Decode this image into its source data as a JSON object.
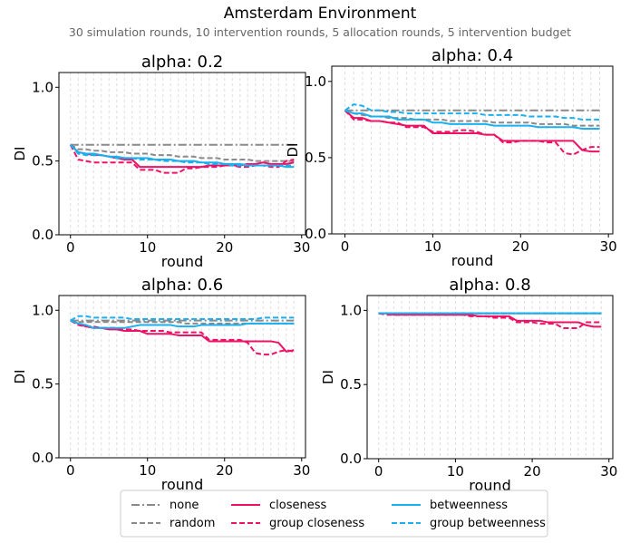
{
  "figure": {
    "title": "Amsterdam Environment",
    "subtitle": "30 simulation rounds, 10 intervention rounds, 5 allocation rounds, 5 intervention budget"
  },
  "legend": {
    "placement": "bottom-center",
    "entries": [
      {
        "name": "none",
        "color": "#8a8a8a",
        "dash": "dashdot"
      },
      {
        "name": "random",
        "color": "#8a8a8a",
        "dash": "dashed"
      },
      {
        "name": "closeness",
        "color": "#ee1166",
        "dash": "solid"
      },
      {
        "name": "group closeness",
        "color": "#ee1166",
        "dash": "dashed"
      },
      {
        "name": "betweenness",
        "color": "#1ab0f0",
        "dash": "solid"
      },
      {
        "name": "group betweenness",
        "color": "#1ab0f0",
        "dash": "dashed"
      }
    ]
  },
  "chart_data": [
    {
      "type": "line",
      "title": "alpha: 0.2",
      "xlabel": "round",
      "ylabel": "DI",
      "xlim": [
        -1.5,
        30.5
      ],
      "ylim": [
        0.0,
        1.1
      ],
      "xticks": [
        0,
        10,
        20,
        30
      ],
      "yticks": [
        0.0,
        0.5,
        1.0
      ],
      "ytick_labels": [
        "0.0",
        "0.5",
        "1.0"
      ],
      "grid": "vertical dashed",
      "x": [
        0,
        1,
        2,
        3,
        4,
        5,
        6,
        7,
        8,
        9,
        10,
        11,
        12,
        13,
        14,
        15,
        16,
        17,
        18,
        19,
        20,
        21,
        22,
        23,
        24,
        25,
        26,
        27,
        28,
        29
      ],
      "series": [
        {
          "name": "none",
          "values": [
            0.61,
            0.61,
            0.61,
            0.61,
            0.61,
            0.61,
            0.61,
            0.61,
            0.61,
            0.61,
            0.61,
            0.61,
            0.61,
            0.61,
            0.61,
            0.61,
            0.61,
            0.61,
            0.61,
            0.61,
            0.61,
            0.61,
            0.61,
            0.61,
            0.61,
            0.61,
            0.61,
            0.61,
            0.61,
            0.61
          ]
        },
        {
          "name": "random",
          "values": [
            0.61,
            0.58,
            0.58,
            0.57,
            0.57,
            0.56,
            0.56,
            0.56,
            0.55,
            0.55,
            0.55,
            0.54,
            0.54,
            0.54,
            0.53,
            0.53,
            0.53,
            0.52,
            0.52,
            0.52,
            0.51,
            0.51,
            0.51,
            0.51,
            0.5,
            0.5,
            0.5,
            0.5,
            0.5,
            0.5
          ]
        },
        {
          "name": "closeness",
          "values": [
            0.61,
            0.56,
            0.55,
            0.54,
            0.54,
            0.53,
            0.52,
            0.51,
            0.51,
            0.46,
            0.46,
            0.46,
            0.46,
            0.46,
            0.46,
            0.46,
            0.46,
            0.46,
            0.47,
            0.47,
            0.47,
            0.47,
            0.47,
            0.48,
            0.48,
            0.49,
            0.48,
            0.48,
            0.48,
            0.49
          ]
        },
        {
          "name": "group closeness",
          "values": [
            0.61,
            0.51,
            0.5,
            0.49,
            0.49,
            0.49,
            0.49,
            0.49,
            0.49,
            0.44,
            0.44,
            0.44,
            0.42,
            0.42,
            0.42,
            0.45,
            0.45,
            0.46,
            0.46,
            0.46,
            0.47,
            0.47,
            0.46,
            0.46,
            0.47,
            0.47,
            0.46,
            0.46,
            0.5,
            0.51
          ]
        },
        {
          "name": "betweenness",
          "values": [
            0.61,
            0.56,
            0.55,
            0.55,
            0.54,
            0.53,
            0.53,
            0.52,
            0.52,
            0.52,
            0.52,
            0.51,
            0.51,
            0.51,
            0.5,
            0.5,
            0.5,
            0.49,
            0.49,
            0.49,
            0.48,
            0.48,
            0.48,
            0.47,
            0.47,
            0.47,
            0.47,
            0.47,
            0.46,
            0.46
          ]
        },
        {
          "name": "group betweenness",
          "values": [
            0.61,
            0.55,
            0.54,
            0.54,
            0.54,
            0.53,
            0.52,
            0.52,
            0.52,
            0.51,
            0.51,
            0.51,
            0.5,
            0.5,
            0.5,
            0.49,
            0.49,
            0.49,
            0.48,
            0.48,
            0.48,
            0.47,
            0.47,
            0.47,
            0.47,
            0.47,
            0.47,
            0.47,
            0.47,
            0.47
          ]
        }
      ]
    },
    {
      "type": "line",
      "title": "alpha: 0.4",
      "xlabel": "round",
      "ylabel": "DI",
      "xlim": [
        -1.5,
        30.5
      ],
      "ylim": [
        0.0,
        1.1
      ],
      "xticks": [
        0,
        10,
        20,
        30
      ],
      "yticks": [
        0.0,
        0.5,
        1.0
      ],
      "ytick_labels": [
        "0.0",
        "0.5",
        "1.0"
      ],
      "grid": "vertical dashed",
      "x": [
        0,
        1,
        2,
        3,
        4,
        5,
        6,
        7,
        8,
        9,
        10,
        11,
        12,
        13,
        14,
        15,
        16,
        17,
        18,
        19,
        20,
        21,
        22,
        23,
        24,
        25,
        26,
        27,
        28,
        29
      ],
      "series": [
        {
          "name": "none",
          "values": [
            0.81,
            0.81,
            0.81,
            0.81,
            0.81,
            0.81,
            0.81,
            0.81,
            0.81,
            0.81,
            0.81,
            0.81,
            0.81,
            0.81,
            0.81,
            0.81,
            0.81,
            0.81,
            0.81,
            0.81,
            0.81,
            0.81,
            0.81,
            0.81,
            0.81,
            0.81,
            0.81,
            0.81,
            0.81,
            0.81
          ]
        },
        {
          "name": "random",
          "values": [
            0.81,
            0.79,
            0.78,
            0.77,
            0.77,
            0.76,
            0.76,
            0.76,
            0.75,
            0.75,
            0.75,
            0.75,
            0.74,
            0.74,
            0.74,
            0.74,
            0.74,
            0.73,
            0.73,
            0.73,
            0.73,
            0.73,
            0.72,
            0.72,
            0.72,
            0.72,
            0.71,
            0.71,
            0.71,
            0.71
          ]
        },
        {
          "name": "closeness",
          "values": [
            0.81,
            0.76,
            0.76,
            0.74,
            0.74,
            0.73,
            0.72,
            0.71,
            0.71,
            0.71,
            0.66,
            0.66,
            0.66,
            0.66,
            0.66,
            0.66,
            0.65,
            0.65,
            0.61,
            0.61,
            0.61,
            0.61,
            0.61,
            0.61,
            0.61,
            0.61,
            0.61,
            0.55,
            0.54,
            0.54
          ]
        },
        {
          "name": "group closeness",
          "values": [
            0.81,
            0.75,
            0.75,
            0.74,
            0.74,
            0.73,
            0.73,
            0.7,
            0.7,
            0.7,
            0.67,
            0.67,
            0.67,
            0.68,
            0.68,
            0.67,
            0.65,
            0.65,
            0.6,
            0.6,
            0.61,
            0.61,
            0.61,
            0.6,
            0.6,
            0.53,
            0.52,
            0.55,
            0.57,
            0.57
          ]
        },
        {
          "name": "betweenness",
          "values": [
            0.81,
            0.79,
            0.79,
            0.77,
            0.77,
            0.77,
            0.75,
            0.75,
            0.75,
            0.75,
            0.73,
            0.73,
            0.72,
            0.72,
            0.72,
            0.72,
            0.72,
            0.71,
            0.71,
            0.71,
            0.71,
            0.71,
            0.7,
            0.7,
            0.7,
            0.7,
            0.7,
            0.69,
            0.69,
            0.69
          ]
        },
        {
          "name": "group betweenness",
          "values": [
            0.81,
            0.85,
            0.84,
            0.81,
            0.81,
            0.8,
            0.8,
            0.79,
            0.79,
            0.79,
            0.79,
            0.79,
            0.79,
            0.79,
            0.79,
            0.79,
            0.78,
            0.78,
            0.78,
            0.78,
            0.78,
            0.77,
            0.77,
            0.77,
            0.77,
            0.76,
            0.76,
            0.75,
            0.75,
            0.75
          ]
        }
      ]
    },
    {
      "type": "line",
      "title": "alpha: 0.6",
      "xlabel": "round",
      "ylabel": "DI",
      "xlim": [
        -1.5,
        30.5
      ],
      "ylim": [
        0.0,
        1.1
      ],
      "xticks": [
        0,
        10,
        20,
        30
      ],
      "yticks": [
        0.0,
        0.5,
        1.0
      ],
      "ytick_labels": [
        "0.0",
        "0.5",
        "1.0"
      ],
      "grid": "vertical dashed",
      "x": [
        0,
        1,
        2,
        3,
        4,
        5,
        6,
        7,
        8,
        9,
        10,
        11,
        12,
        13,
        14,
        15,
        16,
        17,
        18,
        19,
        20,
        21,
        22,
        23,
        24,
        25,
        26,
        27,
        28,
        29
      ],
      "series": [
        {
          "name": "none",
          "values": [
            0.93,
            0.93,
            0.93,
            0.93,
            0.93,
            0.93,
            0.93,
            0.93,
            0.93,
            0.93,
            0.93,
            0.93,
            0.93,
            0.93,
            0.93,
            0.93,
            0.93,
            0.93,
            0.93,
            0.93,
            0.93,
            0.93,
            0.93,
            0.93,
            0.93,
            0.93,
            0.93,
            0.93,
            0.93,
            0.93
          ]
        },
        {
          "name": "random",
          "values": [
            0.93,
            0.92,
            0.92,
            0.92,
            0.92,
            0.92,
            0.92,
            0.92,
            0.92,
            0.92,
            0.92,
            0.92,
            0.92,
            0.92,
            0.92,
            0.91,
            0.91,
            0.91,
            0.91,
            0.91,
            0.91,
            0.91,
            0.91,
            0.91,
            0.91,
            0.91,
            0.91,
            0.91,
            0.91,
            0.91
          ]
        },
        {
          "name": "closeness",
          "values": [
            0.93,
            0.91,
            0.89,
            0.88,
            0.88,
            0.87,
            0.87,
            0.86,
            0.86,
            0.86,
            0.84,
            0.84,
            0.84,
            0.84,
            0.83,
            0.83,
            0.83,
            0.83,
            0.79,
            0.79,
            0.79,
            0.79,
            0.79,
            0.79,
            0.79,
            0.79,
            0.79,
            0.78,
            0.72,
            0.73
          ]
        },
        {
          "name": "group closeness",
          "values": [
            0.93,
            0.9,
            0.89,
            0.89,
            0.88,
            0.88,
            0.88,
            0.87,
            0.87,
            0.86,
            0.86,
            0.86,
            0.86,
            0.85,
            0.85,
            0.85,
            0.85,
            0.85,
            0.8,
            0.8,
            0.8,
            0.8,
            0.8,
            0.78,
            0.71,
            0.7,
            0.7,
            0.72,
            0.73,
            0.72
          ]
        },
        {
          "name": "betweenness",
          "values": [
            0.93,
            0.91,
            0.9,
            0.88,
            0.88,
            0.88,
            0.88,
            0.88,
            0.89,
            0.9,
            0.9,
            0.9,
            0.9,
            0.9,
            0.89,
            0.89,
            0.89,
            0.9,
            0.9,
            0.9,
            0.9,
            0.9,
            0.9,
            0.91,
            0.91,
            0.91,
            0.91,
            0.91,
            0.91,
            0.91
          ]
        },
        {
          "name": "group betweenness",
          "values": [
            0.93,
            0.96,
            0.96,
            0.95,
            0.95,
            0.95,
            0.95,
            0.95,
            0.94,
            0.94,
            0.94,
            0.94,
            0.94,
            0.94,
            0.94,
            0.94,
            0.94,
            0.94,
            0.94,
            0.94,
            0.94,
            0.94,
            0.94,
            0.94,
            0.94,
            0.95,
            0.95,
            0.95,
            0.95,
            0.95
          ]
        }
      ]
    },
    {
      "type": "line",
      "title": "alpha: 0.8",
      "xlabel": "round",
      "ylabel": "DI",
      "xlim": [
        -1.5,
        30.5
      ],
      "ylim": [
        0.0,
        1.1
      ],
      "xticks": [
        0,
        10,
        20,
        30
      ],
      "yticks": [
        0.0,
        0.5,
        1.0
      ],
      "ytick_labels": [
        "0.0",
        "0.5",
        "1.0"
      ],
      "grid": "vertical dashed",
      "x": [
        0,
        1,
        2,
        3,
        4,
        5,
        6,
        7,
        8,
        9,
        10,
        11,
        12,
        13,
        14,
        15,
        16,
        17,
        18,
        19,
        20,
        21,
        22,
        23,
        24,
        25,
        26,
        27,
        28,
        29
      ],
      "series": [
        {
          "name": "none",
          "values": [
            0.98,
            0.98,
            0.98,
            0.98,
            0.98,
            0.98,
            0.98,
            0.98,
            0.98,
            0.98,
            0.98,
            0.98,
            0.98,
            0.98,
            0.98,
            0.98,
            0.98,
            0.98,
            0.98,
            0.98,
            0.98,
            0.98,
            0.98,
            0.98,
            0.98,
            0.98,
            0.98,
            0.98,
            0.98,
            0.98
          ]
        },
        {
          "name": "random",
          "values": [
            0.98,
            0.98,
            0.98,
            0.98,
            0.98,
            0.98,
            0.98,
            0.98,
            0.98,
            0.98,
            0.98,
            0.98,
            0.98,
            0.98,
            0.98,
            0.98,
            0.98,
            0.98,
            0.98,
            0.98,
            0.98,
            0.98,
            0.98,
            0.98,
            0.98,
            0.98,
            0.98,
            0.98,
            0.98,
            0.98
          ]
        },
        {
          "name": "closeness",
          "values": [
            0.98,
            0.98,
            0.97,
            0.97,
            0.97,
            0.97,
            0.97,
            0.97,
            0.97,
            0.97,
            0.97,
            0.97,
            0.97,
            0.96,
            0.96,
            0.96,
            0.96,
            0.96,
            0.93,
            0.93,
            0.93,
            0.93,
            0.92,
            0.92,
            0.92,
            0.92,
            0.92,
            0.9,
            0.89,
            0.89
          ]
        },
        {
          "name": "group closeness",
          "values": [
            0.98,
            0.97,
            0.97,
            0.97,
            0.97,
            0.97,
            0.97,
            0.97,
            0.97,
            0.97,
            0.97,
            0.97,
            0.96,
            0.96,
            0.96,
            0.95,
            0.95,
            0.95,
            0.92,
            0.92,
            0.92,
            0.91,
            0.91,
            0.91,
            0.88,
            0.88,
            0.88,
            0.92,
            0.92,
            0.92
          ]
        },
        {
          "name": "betweenness",
          "values": [
            0.98,
            0.98,
            0.98,
            0.98,
            0.98,
            0.98,
            0.98,
            0.98,
            0.98,
            0.98,
            0.98,
            0.98,
            0.98,
            0.98,
            0.98,
            0.98,
            0.98,
            0.98,
            0.98,
            0.98,
            0.98,
            0.98,
            0.98,
            0.98,
            0.98,
            0.98,
            0.98,
            0.98,
            0.98,
            0.98
          ]
        },
        {
          "name": "group betweenness",
          "values": [
            0.98,
            0.98,
            0.98,
            0.98,
            0.98,
            0.98,
            0.98,
            0.98,
            0.98,
            0.98,
            0.98,
            0.98,
            0.98,
            0.98,
            0.98,
            0.98,
            0.98,
            0.98,
            0.98,
            0.98,
            0.98,
            0.98,
            0.98,
            0.98,
            0.98,
            0.98,
            0.98,
            0.98,
            0.98,
            0.98
          ]
        }
      ]
    }
  ]
}
